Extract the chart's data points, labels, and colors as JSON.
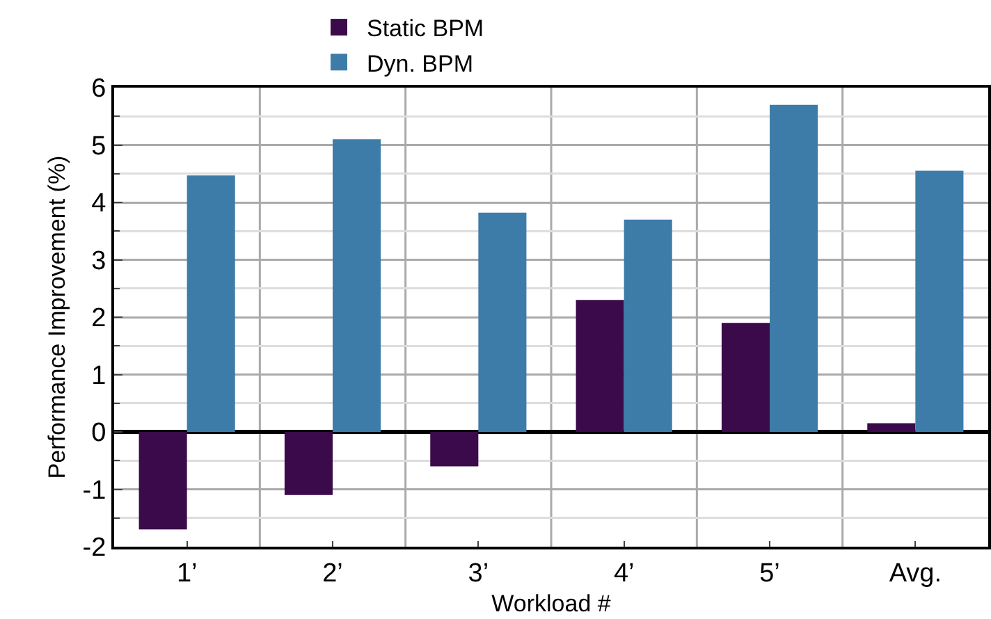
{
  "chart_data": {
    "type": "bar",
    "categories": [
      "1’",
      "2’",
      "3’",
      "4’",
      "5’",
      "Avg."
    ],
    "series": [
      {
        "name": "Static BPM",
        "color": "#3b0a4a",
        "values": [
          -1.7,
          -1.1,
          -0.6,
          2.3,
          1.9,
          0.15
        ]
      },
      {
        "name": "Dyn. BPM",
        "color": "#3d7ca8",
        "values": [
          4.47,
          5.1,
          3.82,
          3.7,
          5.7,
          4.55
        ]
      }
    ],
    "xlabel": "Workload #",
    "ylabel": "Performance Improvement (%)",
    "ylim": [
      -2,
      6
    ],
    "yticks": [
      -2,
      -1,
      0,
      1,
      2,
      3,
      4,
      5,
      6
    ],
    "grid": true,
    "legend": "top"
  }
}
